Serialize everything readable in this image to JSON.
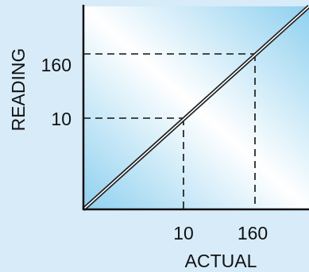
{
  "chart_data": {
    "type": "line",
    "xlabel": "ACTUAL",
    "ylabel": "READING",
    "x_ticks": [
      "10",
      "160"
    ],
    "y_ticks": [
      "160",
      "10"
    ],
    "series": [
      {
        "x": [
          0,
          10,
          160,
          190
        ],
        "y": [
          0,
          10,
          160,
          190
        ]
      }
    ],
    "guides": [
      {
        "x": 10,
        "y": 10
      },
      {
        "x": 160,
        "y": 160
      }
    ],
    "xlim": [
      0,
      190
    ],
    "ylim": [
      0,
      190
    ],
    "grid": false,
    "colors": {
      "page_background": "#d7ebf9",
      "plot_gradient_edge": "#8fd0ef",
      "plot_gradient_center": "#ffffff",
      "line": "#222222",
      "text": "#111111"
    }
  }
}
